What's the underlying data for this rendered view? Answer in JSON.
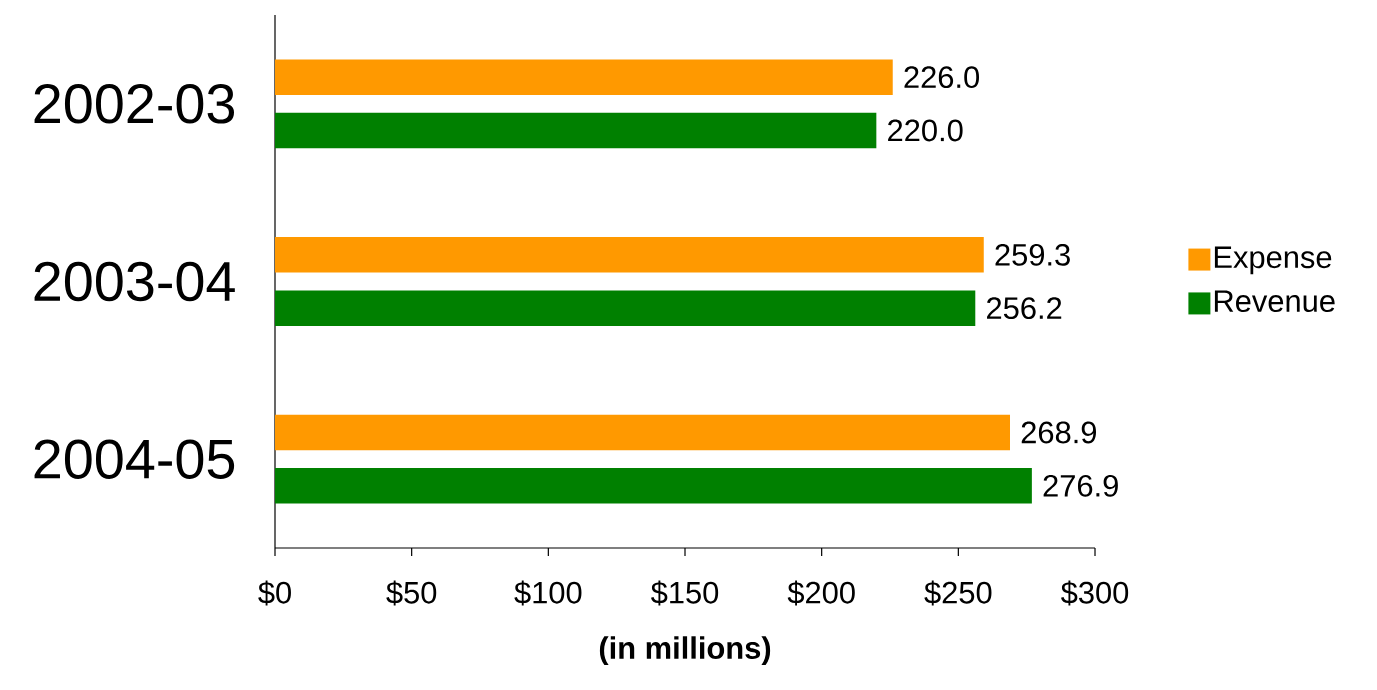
{
  "chart_data": {
    "type": "bar",
    "orientation": "horizontal",
    "categories": [
      "2002-03",
      "2003-04",
      "2004-05"
    ],
    "series": [
      {
        "name": "Expense",
        "color": "#ff9900",
        "values": [
          226.0,
          259.3,
          268.9
        ],
        "value_labels": [
          "226.0",
          "259.3",
          "268.9"
        ]
      },
      {
        "name": "Revenue",
        "color": "#008000",
        "values": [
          220.0,
          256.2,
          276.9
        ],
        "value_labels": [
          "220.0",
          "256.2",
          "276.9"
        ]
      }
    ],
    "xlim": [
      0,
      300
    ],
    "xticks": [
      {
        "value": 0,
        "label": "$0"
      },
      {
        "value": 50,
        "label": "$50"
      },
      {
        "value": 100,
        "label": "$100"
      },
      {
        "value": 150,
        "label": "$150"
      },
      {
        "value": 200,
        "label": "$200"
      },
      {
        "value": 250,
        "label": "$250"
      },
      {
        "value": 300,
        "label": "$300"
      }
    ],
    "xlabel": "(in millions)",
    "legend": "right"
  }
}
